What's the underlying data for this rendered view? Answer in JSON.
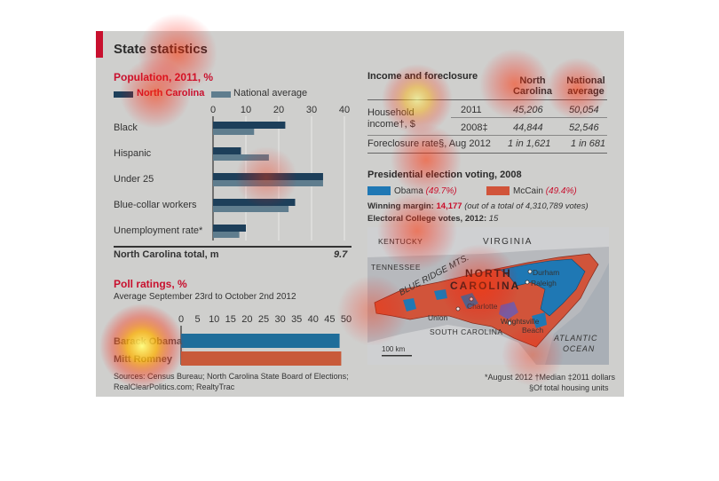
{
  "title": "State statistics",
  "chart_data": [
    {
      "type": "bar",
      "title": "Population, 2011, %",
      "categories": [
        "Black",
        "Hispanic",
        "Under 25",
        "Blue-collar workers",
        "Unemployment rate*"
      ],
      "series": [
        {
          "name": "North Carolina",
          "values": [
            22,
            8.5,
            33.5,
            25,
            10
          ]
        },
        {
          "name": "National average",
          "values": [
            12.5,
            17,
            33.5,
            23,
            8
          ]
        }
      ],
      "xlim": [
        0,
        40
      ],
      "ticks": [
        0,
        10,
        20,
        30,
        40
      ],
      "total_label": "North Carolina total, m",
      "total_value": "9.7"
    },
    {
      "type": "bar",
      "title": "Poll ratings, %",
      "subtitle": "Average September 23rd to October 2nd 2012",
      "categories": [
        "Barack Obama",
        "Mitt Romney"
      ],
      "values": [
        48,
        48.5
      ],
      "xlim": [
        0,
        50
      ],
      "ticks": [
        0,
        5,
        10,
        15,
        20,
        25,
        30,
        35,
        40,
        45,
        50
      ]
    },
    {
      "type": "table",
      "title": "Income and foreclosure",
      "columns": [
        "North Carolina",
        "National average"
      ],
      "rows": [
        {
          "label": "Household income†, $",
          "year": "2011",
          "nc": "45,206",
          "nat": "50,054"
        },
        {
          "label": "",
          "year": "2008‡",
          "nc": "44,844",
          "nat": "52,546"
        },
        {
          "label": "Foreclosure rate§, Aug 2012",
          "year": "",
          "nc": "1 in 1,621",
          "nat": "1 in 681"
        }
      ]
    }
  ],
  "colors": {
    "nc": "#1d3f5a",
    "national": "#5f7d8e",
    "poll_obama": "#1f6d9a",
    "poll_romney": "#c85a3a",
    "obama": "#1f78b4",
    "mccain": "#d1543a",
    "accent": "#c8102e"
  },
  "election": {
    "title": "Presidential election voting, 2008",
    "obama_label": "Obama",
    "obama_pct": "(49.7%)",
    "mccain_label": "McCain",
    "mccain_pct": "(49.4%)",
    "margin_label": "Winning margin:",
    "margin_value": "14,177",
    "margin_note": "(out of a total of 4,310,789 votes)",
    "electoral_label": "Electoral College votes, 2012:",
    "electoral_value": "15"
  },
  "map": {
    "state_name_1": "NORTH",
    "state_name_2": "CAROLINA",
    "neighbors": [
      "KENTUCKY",
      "VIRGINIA",
      "TENNESSEE",
      "SOUTH CAROLINA"
    ],
    "mountains": "BLUE RIDGE MTS.",
    "ocean_1": "ATLANTIC",
    "ocean_2": "OCEAN",
    "cities": [
      "Durham",
      "Raleigh",
      "Charlotte",
      "Union",
      "Wrightsville",
      "Beach"
    ],
    "scale": "100 km"
  },
  "sources": {
    "line1": "Sources: Census Bureau; North Carolina State Board of Elections;",
    "line2": "RealClearPolitics.com; RealtyTrac"
  },
  "footnotes": {
    "line1": "*August 2012  †Median  ‡2011 dollars",
    "line2": "§Of total housing units"
  }
}
